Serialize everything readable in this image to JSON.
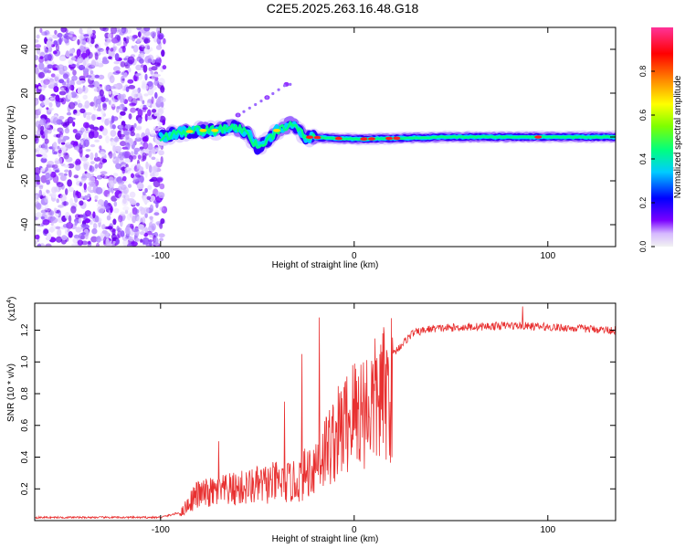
{
  "title": "C2E5.2025.263.16.48.G18",
  "chart_data": [
    {
      "type": "heatmap",
      "xlabel": "Height of straight line (km)",
      "ylabel": "Frequency (Hz)",
      "xlim": [
        -165,
        135
      ],
      "ylim": [
        -50,
        50
      ],
      "xticks": [
        -100,
        0,
        100
      ],
      "yticks": [
        -40,
        -20,
        0,
        20,
        40
      ],
      "noise_region_x": [
        -165,
        -98
      ],
      "signal_track": [
        {
          "x": -100,
          "y": 0
        },
        {
          "x": -90,
          "y": 2
        },
        {
          "x": -80,
          "y": 3
        },
        {
          "x": -70,
          "y": 3
        },
        {
          "x": -62,
          "y": 5
        },
        {
          "x": -55,
          "y": 2
        },
        {
          "x": -50,
          "y": -5
        },
        {
          "x": -45,
          "y": -2
        },
        {
          "x": -40,
          "y": 3
        },
        {
          "x": -33,
          "y": 6
        },
        {
          "x": -25,
          "y": 0
        },
        {
          "x": 0,
          "y": -1
        },
        {
          "x": 50,
          "y": 0
        },
        {
          "x": 100,
          "y": 0
        },
        {
          "x": 135,
          "y": 0
        }
      ],
      "secondary_track": [
        {
          "x": -60,
          "y": 10
        },
        {
          "x": -45,
          "y": 18
        },
        {
          "x": -35,
          "y": 24
        }
      ],
      "colorbar": {
        "label": "Normalized spectral amplitude",
        "range": [
          0,
          1
        ],
        "ticks": [
          "0.0",
          "0.2",
          "0.4",
          "0.6",
          "0.8"
        ],
        "tick_values": [
          0.0,
          0.2,
          0.4,
          0.6,
          0.8
        ],
        "colors": [
          "#f2f2f2",
          "#d5b8ff",
          "#7a00ff",
          "#0000ff",
          "#00ccff",
          "#00ff80",
          "#7fff00",
          "#ffff00",
          "#ff8800",
          "#ff0000",
          "#ff3399"
        ]
      }
    },
    {
      "type": "line",
      "xlabel": "Height of straight line (km)",
      "ylabel": "SNR (10 * v/v)",
      "y_multiplier": "(x10",
      "y_multiplier_exp": "4",
      "y_multiplier_close": ")",
      "xlim": [
        -165,
        135
      ],
      "ylim": [
        0,
        1.37
      ],
      "xticks": [
        -100,
        0,
        100
      ],
      "yticks": [
        "0.2",
        "0.4",
        "0.6",
        "0.8",
        "1.0",
        "1.2"
      ],
      "ytick_values": [
        0.2,
        0.4,
        0.6,
        0.8,
        1.0,
        1.2
      ],
      "color": "#e83030",
      "envelope": [
        {
          "x": -165,
          "y": 0.02
        },
        {
          "x": -100,
          "y": 0.02
        },
        {
          "x": -90,
          "y": 0.05
        },
        {
          "x": -82,
          "y": 0.2
        },
        {
          "x": -60,
          "y": 0.25
        },
        {
          "x": -40,
          "y": 0.3
        },
        {
          "x": -30,
          "y": 0.3
        },
        {
          "x": -20,
          "y": 0.45
        },
        {
          "x": -10,
          "y": 0.65
        },
        {
          "x": 0,
          "y": 0.85
        },
        {
          "x": 10,
          "y": 0.92
        },
        {
          "x": 20,
          "y": 1.05
        },
        {
          "x": 30,
          "y": 1.18
        },
        {
          "x": 40,
          "y": 1.21
        },
        {
          "x": 80,
          "y": 1.23
        },
        {
          "x": 100,
          "y": 1.22
        },
        {
          "x": 135,
          "y": 1.2
        }
      ],
      "spikes": [
        {
          "x": -18,
          "y": 1.28
        },
        {
          "x": -27,
          "y": 1.05
        },
        {
          "x": -36,
          "y": 0.75
        },
        {
          "x": -70,
          "y": 0.5
        },
        {
          "x": 87,
          "y": 1.35
        }
      ]
    }
  ]
}
